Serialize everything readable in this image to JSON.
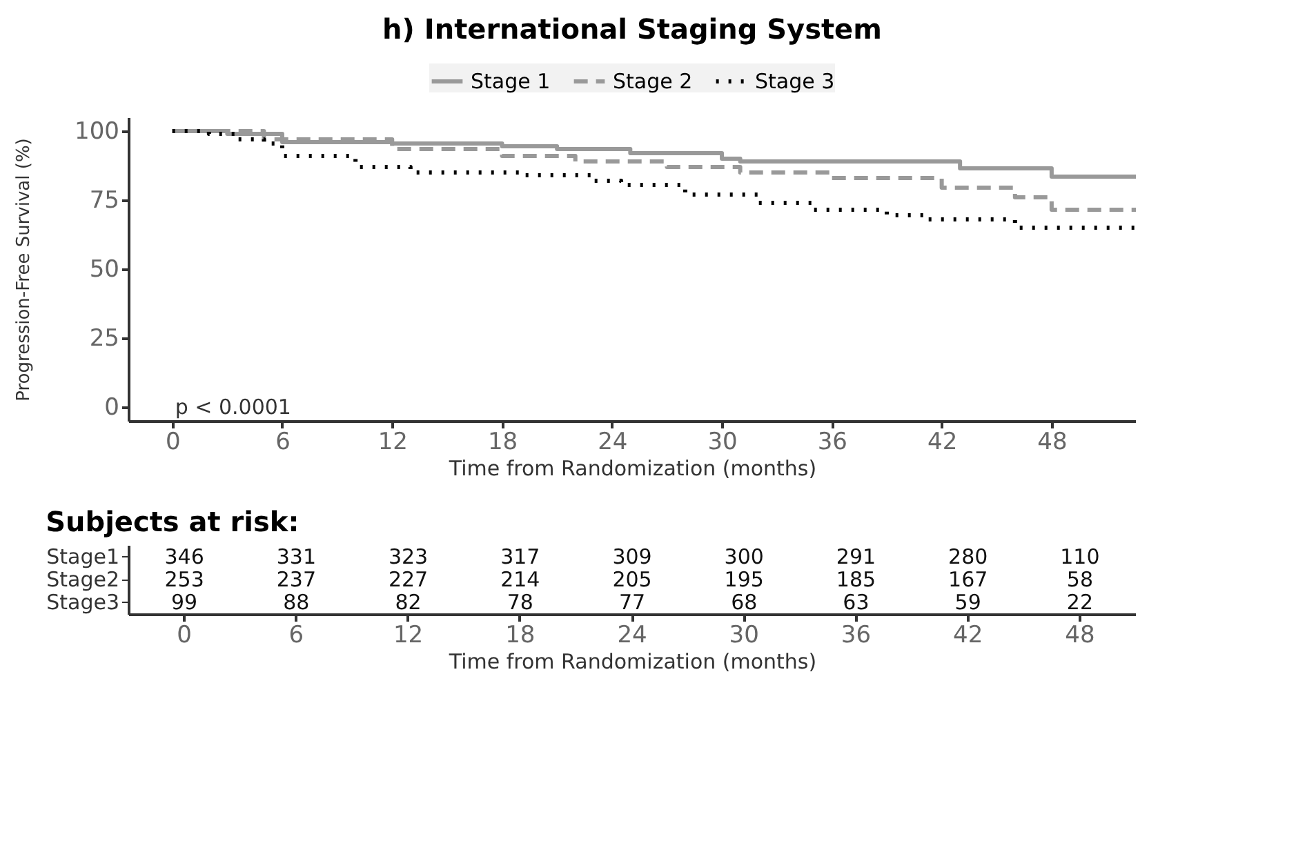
{
  "chart_data": [
    {
      "type": "step",
      "title": "h) International Staging System",
      "xlabel": "Time from Randomization (months)",
      "ylabel": "Progression-Free Survival (%)",
      "xlim": [
        -2.4,
        52.6
      ],
      "ylim": [
        -5,
        105
      ],
      "xticks": [
        0,
        6,
        12,
        18,
        24,
        30,
        36,
        42,
        48
      ],
      "yticks": [
        0,
        25,
        50,
        75,
        100
      ],
      "grid": false,
      "legend": "top",
      "marker": "none",
      "annotations": [
        "p < 0.0001"
      ],
      "series": [
        {
          "name": "Stage 1",
          "color": "#999999",
          "line_style": "solid",
          "x": [
            0,
            3,
            6,
            12,
            18,
            21,
            25,
            30,
            31,
            43,
            48,
            52.6
          ],
          "values": [
            100,
            99,
            96,
            95.5,
            94.5,
            93.5,
            92,
            90,
            89,
            86.5,
            83.5,
            83.5
          ]
        },
        {
          "name": "Stage 2",
          "color": "#999999",
          "line_style": "dashed",
          "x": [
            0,
            5,
            12,
            18,
            22,
            27,
            31,
            36,
            42,
            46,
            48,
            52.6
          ],
          "values": [
            100,
            97,
            93.5,
            91,
            89,
            87,
            85,
            83,
            79.5,
            76,
            71.5,
            71.5
          ]
        },
        {
          "name": "Stage 3",
          "color": "#000000",
          "line_style": "dotted",
          "x": [
            0,
            2,
            3.5,
            5,
            6,
            10,
            13,
            19,
            23,
            24.5,
            28,
            32,
            35,
            39,
            41,
            46,
            52.6
          ],
          "values": [
            100,
            99,
            97,
            95.5,
            91,
            87,
            85,
            84,
            82,
            80.5,
            77,
            74,
            71.5,
            69.5,
            68,
            65,
            65
          ]
        }
      ]
    },
    {
      "type": "heatmap",
      "title": "Subjects at risk:",
      "xlabel": "Time from Randomization (months)",
      "data_labels": true,
      "categories": [
        "0",
        "6",
        "12",
        "18",
        "24",
        "30",
        "36",
        "42",
        "48"
      ],
      "y_categories": [
        "Stage1",
        "Stage2",
        "Stage3"
      ],
      "cells": [
        [
          346,
          331,
          323,
          317,
          309,
          300,
          291,
          280,
          110
        ],
        [
          253,
          237,
          227,
          214,
          205,
          195,
          185,
          167,
          58
        ],
        [
          99,
          88,
          82,
          78,
          77,
          68,
          63,
          59,
          22
        ]
      ]
    }
  ]
}
